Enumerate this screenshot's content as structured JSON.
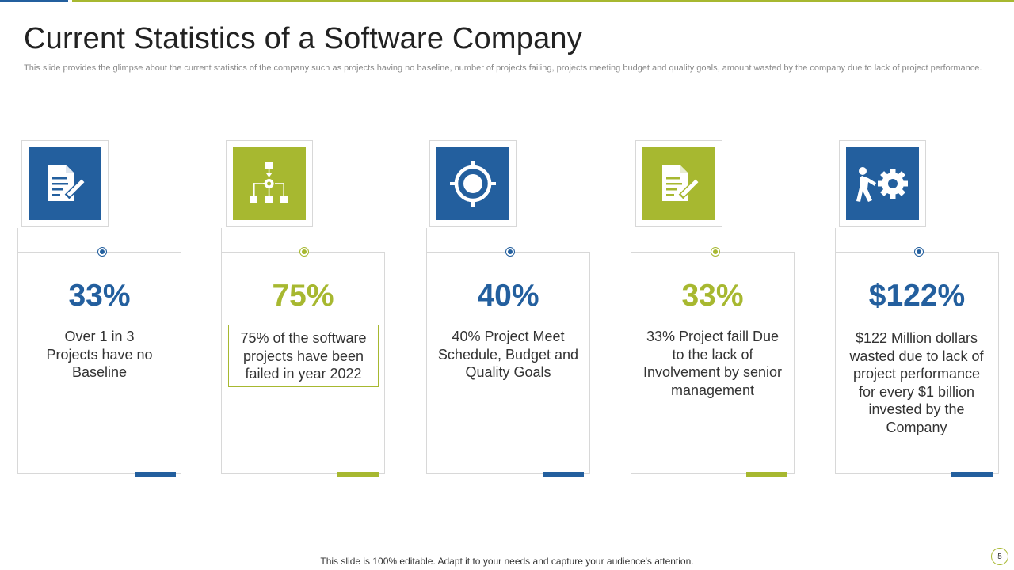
{
  "slide": {
    "title": "Current Statistics of a Software Company",
    "subtitle": "This slide provides the glimpse about the current statistics of the company such as projects having no baseline, number of projects failing, projects meeting budget and quality goals, amount wasted by the company due to lack of project performance.",
    "footer": "This slide is 100% editable. Adapt it to your needs and capture your audience's attention.",
    "page_number": "5"
  },
  "colors": {
    "blue": "#235f9e",
    "green": "#a7b830",
    "border": "#d8d8d8"
  },
  "cards": [
    {
      "icon": "document-edit-icon",
      "value": "33%",
      "description": "Over 1 in 3 Projects have no Baseline"
    },
    {
      "icon": "flowchart-icon",
      "value": "75%",
      "description": "75% of the software projects have been failed in year 2022"
    },
    {
      "icon": "target-icon",
      "value": "40%",
      "description": "40% Project Meet Schedule, Budget and Quality Goals"
    },
    {
      "icon": "document-edit-icon",
      "value": "33%",
      "description": "33% Project faill Due to the lack of Involvement by senior management"
    },
    {
      "icon": "person-pushing-gear-icon",
      "value": "$122%",
      "description": "$122 Million dollars wasted due to lack of project performance for every $1 billion invested by the Company"
    }
  ]
}
